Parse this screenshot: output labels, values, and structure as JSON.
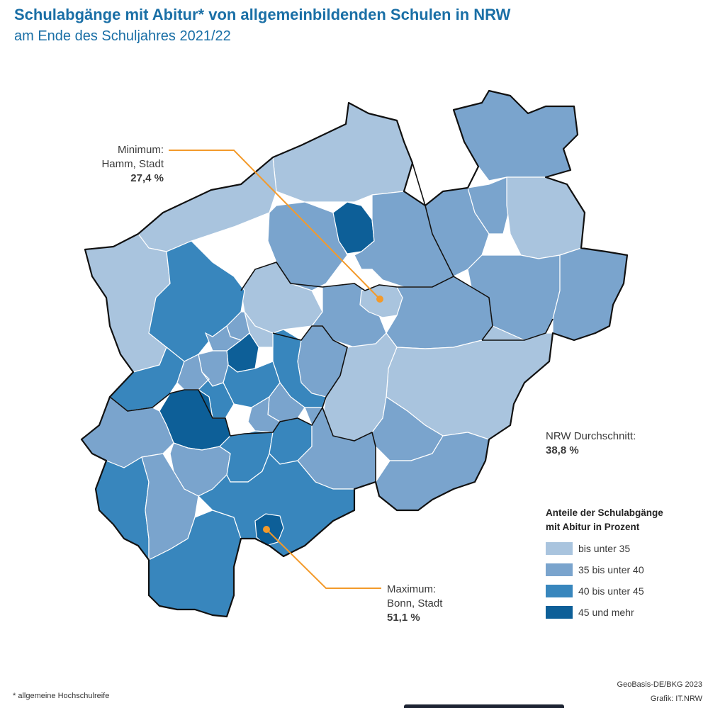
{
  "title": "Schulabgänge mit Abitur* von allgemeinbildenden Schulen in NRW",
  "subtitle": "am Ende des Schuljahres 2021/22",
  "colors": {
    "class1": "#a9c4de",
    "class2": "#7aa4cd",
    "class3": "#3886bd",
    "class4": "#0d5f98",
    "callout": "#f39a2b",
    "title": "#1a6fa6"
  },
  "minimum": {
    "label": "Minimum:",
    "name": "Hamm, Stadt",
    "value": "27,4 %"
  },
  "maximum": {
    "label": "Maximum:",
    "name": "Bonn, Stadt",
    "value": "51,1 %"
  },
  "average": {
    "label": "NRW Durchschnitt:",
    "value": "38,8 %"
  },
  "legend": {
    "title_line1": "Anteile der Schulabgänge",
    "title_line2": "mit Abitur in Prozent",
    "items": [
      {
        "label": "bis unter 35",
        "color": "#a9c4de"
      },
      {
        "label": "35 bis unter 40",
        "color": "#7aa4cd"
      },
      {
        "label": "40 bis unter 45",
        "color": "#3886bd"
      },
      {
        "label": "45 und mehr",
        "color": "#0d5f98"
      }
    ]
  },
  "footnote": "* allgemeine Hochschulreife",
  "source": {
    "line1": "GeoBasis-DE/BKG 2023",
    "line2": "Grafik: IT.NRW"
  }
}
